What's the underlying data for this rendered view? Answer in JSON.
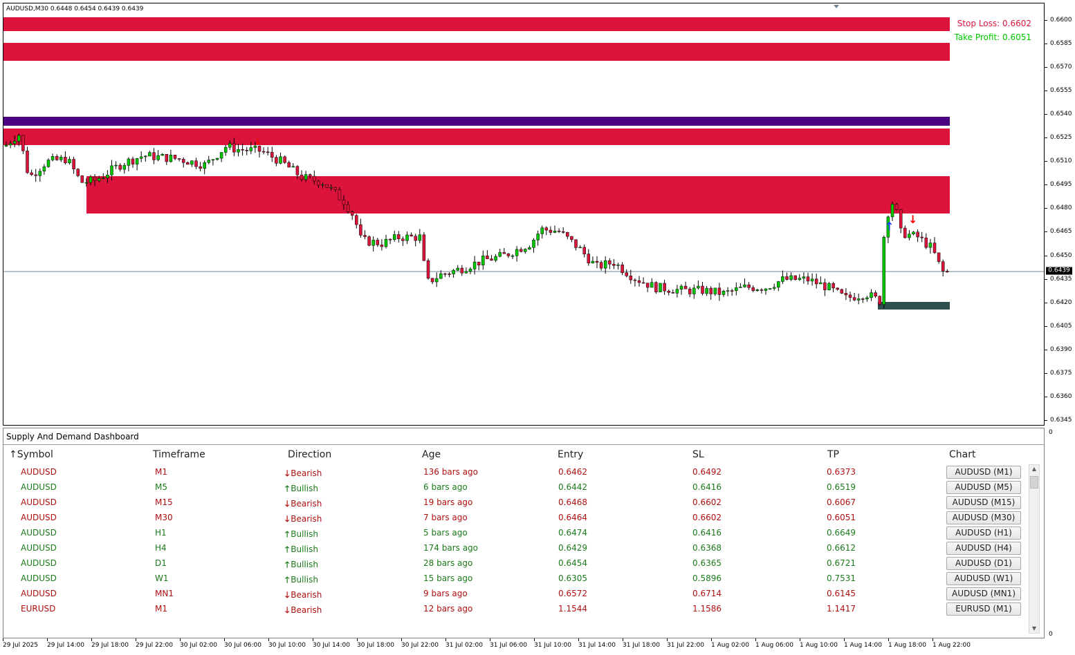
{
  "chart": {
    "header": "AUDUSD,M30  0.6448 0.6454 0.6439 0.6439",
    "stop_loss_text": "Stop Loss: 0.6602",
    "take_profit_text": "Take Profit: 0.6051",
    "current_price": "0.6439",
    "price_ticks": [
      "0.6600",
      "0.6585",
      "0.6570",
      "0.6555",
      "0.6540",
      "0.6525",
      "0.6510",
      "0.6495",
      "0.6480",
      "0.6465",
      "0.6450",
      "0.6435",
      "0.6420",
      "0.6405",
      "0.6390",
      "0.6375",
      "0.6360",
      "0.6345"
    ],
    "time_ticks": [
      "29 Jul 2025",
      "29 Jul 14:00",
      "29 Jul 18:00",
      "29 Jul 22:00",
      "30 Jul 02:00",
      "30 Jul 06:00",
      "30 Jul 10:00",
      "30 Jul 14:00",
      "30 Jul 18:00",
      "30 Jul 22:00",
      "31 Jul 02:00",
      "31 Jul 06:00",
      "31 Jul 10:00",
      "31 Jul 14:00",
      "31 Jul 18:00",
      "31 Jul 22:00",
      "1 Aug 02:00",
      "1 Aug 06:00",
      "1 Aug 10:00",
      "1 Aug 14:00",
      "1 Aug 18:00",
      "1 Aug 22:00"
    ],
    "subwindow_scale_top": "0",
    "subwindow_scale_bottom": "0",
    "colors": {
      "supply_zone": "#dc143c",
      "purple_line": "#4b0082",
      "demand_zone": "#2f4f4f",
      "bull_candle": "#00c800",
      "bear_candle": "#dc143c"
    }
  },
  "dashboard": {
    "title": "Supply And Demand Dashboard",
    "columns": [
      "Symbol",
      "Timeframe",
      "Direction",
      "Age",
      "Entry",
      "SL",
      "TP",
      "Chart"
    ],
    "sort_indicator": "↑",
    "rows": [
      {
        "symbol": "AUDUSD",
        "tf": "M1",
        "dir": "Bearish",
        "arrow": "🡓",
        "age": "136 bars ago",
        "entry": "0.6462",
        "sl": "0.6492",
        "tp": "0.6373",
        "chart": "AUDUSD (M1)",
        "trend": "bear"
      },
      {
        "symbol": "AUDUSD",
        "tf": "M5",
        "dir": "Bullish",
        "arrow": "🡑",
        "age": "6 bars ago",
        "entry": "0.6442",
        "sl": "0.6416",
        "tp": "0.6519",
        "chart": "AUDUSD (M5)",
        "trend": "bull"
      },
      {
        "symbol": "AUDUSD",
        "tf": "M15",
        "dir": "Bearish",
        "arrow": "🡓",
        "age": "19 bars ago",
        "entry": "0.6468",
        "sl": "0.6602",
        "tp": "0.6067",
        "chart": "AUDUSD (M15)",
        "trend": "bear"
      },
      {
        "symbol": "AUDUSD",
        "tf": "M30",
        "dir": "Bearish",
        "arrow": "🡓",
        "age": "7 bars ago",
        "entry": "0.6464",
        "sl": "0.6602",
        "tp": "0.6051",
        "chart": "AUDUSD (M30)",
        "trend": "bear"
      },
      {
        "symbol": "AUDUSD",
        "tf": "H1",
        "dir": "Bullish",
        "arrow": "🡑",
        "age": "5 bars ago",
        "entry": "0.6474",
        "sl": "0.6416",
        "tp": "0.6649",
        "chart": "AUDUSD (H1)",
        "trend": "bull"
      },
      {
        "symbol": "AUDUSD",
        "tf": "H4",
        "dir": "Bullish",
        "arrow": "🡑",
        "age": "174 bars ago",
        "entry": "0.6429",
        "sl": "0.6368",
        "tp": "0.6612",
        "chart": "AUDUSD (H4)",
        "trend": "bull"
      },
      {
        "symbol": "AUDUSD",
        "tf": "D1",
        "dir": "Bullish",
        "arrow": "🡑",
        "age": "28 bars ago",
        "entry": "0.6454",
        "sl": "0.6365",
        "tp": "0.6721",
        "chart": "AUDUSD (D1)",
        "trend": "bull"
      },
      {
        "symbol": "AUDUSD",
        "tf": "W1",
        "dir": "Bullish",
        "arrow": "🡑",
        "age": "15 bars ago",
        "entry": "0.6305",
        "sl": "0.5896",
        "tp": "0.7531",
        "chart": "AUDUSD (W1)",
        "trend": "bull"
      },
      {
        "symbol": "AUDUSD",
        "tf": "MN1",
        "dir": "Bearish",
        "arrow": "🡓",
        "age": "9 bars ago",
        "entry": "0.6572",
        "sl": "0.6714",
        "tp": "0.6145",
        "chart": "AUDUSD (MN1)",
        "trend": "bear"
      },
      {
        "symbol": "EURUSD",
        "tf": "M1",
        "dir": "Bearish",
        "arrow": "🡓",
        "age": "12 bars ago",
        "entry": "1.1544",
        "sl": "1.1586",
        "tp": "1.1417",
        "chart": "EURUSD (M1)",
        "trend": "bear"
      }
    ]
  }
}
